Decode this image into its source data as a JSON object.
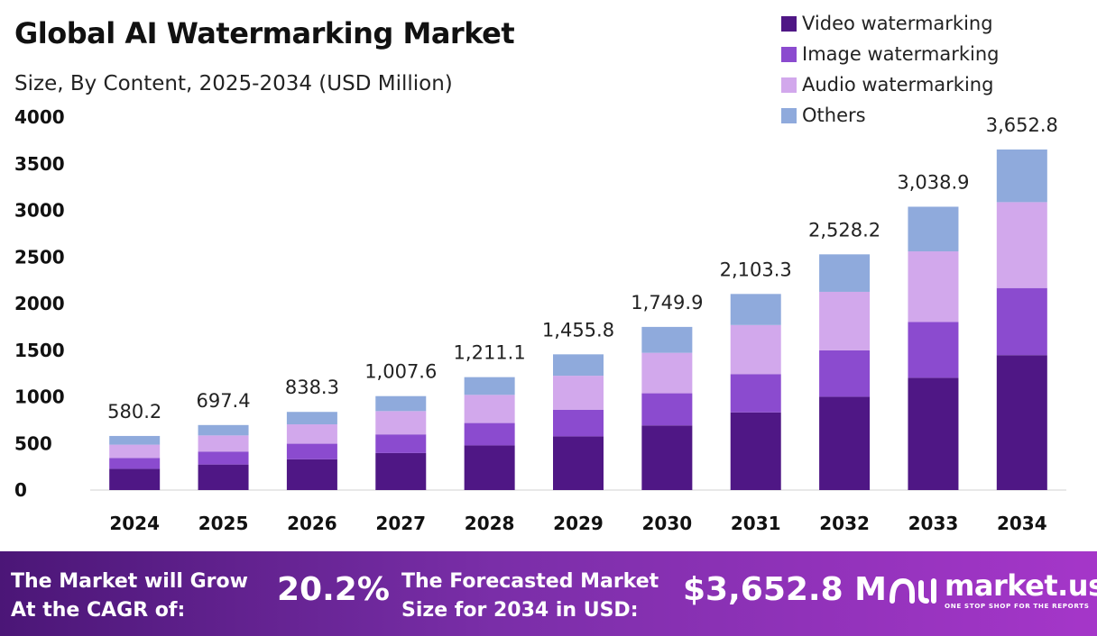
{
  "chart_data": {
    "type": "bar",
    "stacked": true,
    "title": "Global AI Watermarking Market",
    "subtitle": "Size, By Content, 2025-2034 (USD Million)",
    "xlabel": "",
    "ylabel": "",
    "ylim": [
      0,
      4000
    ],
    "yticks": [
      0,
      500,
      1000,
      1500,
      2000,
      2500,
      3000,
      3500,
      4000
    ],
    "grid": false,
    "legend_position": "top-right",
    "categories": [
      "2024",
      "2025",
      "2026",
      "2027",
      "2028",
      "2029",
      "2030",
      "2031",
      "2032",
      "2033",
      "2034"
    ],
    "series": [
      {
        "name": "Video watermarking",
        "color": "#4f1785",
        "values": [
          228,
          274,
          330,
          397,
          479,
          576,
          693,
          833,
          1001,
          1204,
          1447
        ]
      },
      {
        "name": "Image watermarking",
        "color": "#8b4bcf",
        "values": [
          116,
          139,
          167,
          200,
          240,
          286,
          345,
          411,
          497,
          598,
          720
        ]
      },
      {
        "name": "Audio watermarking",
        "color": "#d2a8ec",
        "values": [
          143,
          173,
          208,
          250,
          302,
          364,
          434,
          526,
          628,
          758,
          921
        ]
      },
      {
        "name": "Others",
        "color": "#8faadc",
        "values": [
          93.2,
          111.4,
          133.3,
          160.6,
          190.1,
          229.8,
          277.9,
          333.3,
          402.2,
          478.9,
          564.8
        ]
      }
    ],
    "totals": [
      580.2,
      697.4,
      838.3,
      1007.6,
      1211.1,
      1455.8,
      1749.9,
      2103.3,
      2528.2,
      3038.9,
      3652.8
    ],
    "total_labels": [
      "580.2",
      "697.4",
      "838.3",
      "1,007.6",
      "1,211.1",
      "1,455.8",
      "1,749.9",
      "2,103.3",
      "2,528.2",
      "3,038.9",
      "3,652.8"
    ]
  },
  "footer": {
    "cagr_text_line1": "The Market will Grow",
    "cagr_text_line2": "At the CAGR of:",
    "cagr_value": "20.2%",
    "forecast_text_line1": "The Forecasted Market",
    "forecast_text_line2": "Size for 2034 in USD:",
    "forecast_value": "$3,652.8 M",
    "brand_name": "market.us",
    "brand_tagline": "ONE STOP SHOP FOR THE REPORTS",
    "brand_icon": "market-us-logo-icon"
  }
}
